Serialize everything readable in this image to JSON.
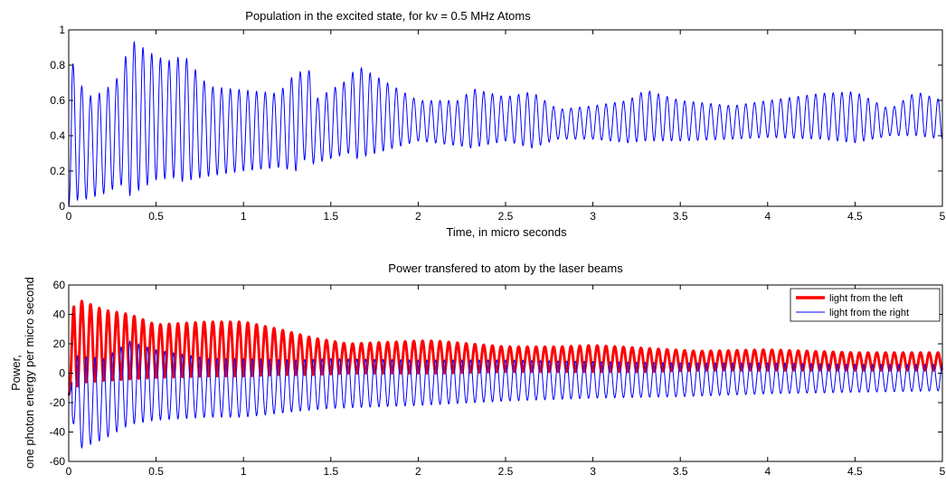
{
  "chart_data": [
    {
      "type": "line",
      "title": "Population in the excited state, for kv = 0.5 MHz Atoms",
      "xlabel": "Time, in micro seconds",
      "ylabel": "",
      "xlim": [
        0,
        5
      ],
      "ylim": [
        0,
        1
      ],
      "xticks": [
        "0",
        "0.5",
        "1",
        "1.5",
        "2",
        "2.5",
        "3",
        "3.5",
        "4",
        "4.5",
        "5"
      ],
      "yticks": [
        "0",
        "0.2",
        "0.4",
        "0.6",
        "0.8",
        "1"
      ],
      "grid": false,
      "legend": null,
      "series": [
        {
          "color": "#0000ff",
          "style": "oscillating",
          "oscillation_period_us": 0.05,
          "envelope": {
            "t": [
              0,
              0.02,
              0.1,
              0.2,
              0.3,
              0.35,
              0.5,
              0.6,
              0.65,
              0.8,
              1.0,
              1.2,
              1.3,
              1.38,
              1.4,
              1.6,
              1.65,
              2.0,
              2.25,
              2.3,
              2.5,
              2.65,
              2.8,
              3.0,
              3.2,
              3.3,
              3.5,
              3.8,
              4.0,
              4.3,
              4.5,
              4.7,
              4.85,
              5.0
            ],
            "max": [
              0.0,
              0.82,
              0.62,
              0.65,
              0.75,
              0.95,
              0.85,
              0.82,
              0.87,
              0.68,
              0.66,
              0.64,
              0.76,
              0.77,
              0.6,
              0.72,
              0.8,
              0.6,
              0.6,
              0.67,
              0.62,
              0.65,
              0.55,
              0.57,
              0.6,
              0.66,
              0.6,
              0.57,
              0.6,
              0.64,
              0.65,
              0.55,
              0.65,
              0.6
            ],
            "min": [
              0.0,
              0.03,
              0.04,
              0.07,
              0.12,
              0.06,
              0.15,
              0.16,
              0.14,
              0.17,
              0.2,
              0.22,
              0.2,
              0.3,
              0.24,
              0.3,
              0.27,
              0.37,
              0.34,
              0.33,
              0.37,
              0.33,
              0.38,
              0.38,
              0.36,
              0.37,
              0.37,
              0.38,
              0.39,
              0.38,
              0.36,
              0.4,
              0.4,
              0.38
            ]
          }
        }
      ]
    },
    {
      "type": "line",
      "title": "Power transfered to atom by the laser beams",
      "xlabel": "",
      "ylabel": "Power,\none photon energy per micro second",
      "ylabel_lines": [
        "Power,",
        "one photon energy per micro second"
      ],
      "xlim": [
        0,
        5
      ],
      "ylim": [
        -60,
        60
      ],
      "xticks": [
        "0",
        "0.5",
        "1",
        "1.5",
        "2",
        "2.5",
        "3",
        "3.5",
        "4",
        "4.5",
        "5"
      ],
      "yticks": [
        "-60",
        "-40",
        "-20",
        "0",
        "20",
        "40",
        "60"
      ],
      "grid": false,
      "legend": "top-right",
      "series": [
        {
          "name": "light from the left",
          "color": "#ff0000",
          "line_weight": "thick",
          "oscillation_period_us": 0.05,
          "envelope": {
            "t": [
              0,
              0.03,
              0.1,
              0.2,
              0.35,
              0.5,
              0.8,
              1.0,
              1.2,
              1.4,
              1.6,
              2.0,
              2.1,
              2.5,
              2.8,
              3.0,
              3.3,
              3.6,
              4.0,
              4.5,
              5.0
            ],
            "max": [
              -15,
              51,
              48,
              43,
              40,
              33,
              35,
              35,
              30,
              24,
              20,
              22,
              22,
              18,
              18,
              19,
              17,
              15,
              16,
              14,
              14
            ],
            "min": [
              -15,
              -10,
              -6,
              -5,
              -4,
              -3,
              -2,
              -2,
              -1,
              -1,
              0,
              0,
              0,
              1,
              1,
              1,
              1,
              2,
              2,
              2,
              2
            ]
          }
        },
        {
          "name": "light from the right",
          "color": "#0000ff",
          "line_weight": "thin",
          "oscillation_period_us": 0.05,
          "envelope": {
            "t": [
              0,
              0.05,
              0.2,
              0.35,
              0.5,
              0.8,
              1.0,
              1.3,
              1.5,
              2.0,
              2.5,
              3.0,
              3.5,
              4.0,
              4.5,
              5.0
            ],
            "max": [
              -15,
              12,
              10,
              22,
              16,
              10,
              10,
              9,
              10,
              9,
              9,
              8,
              7,
              7,
              6,
              6
            ],
            "min": [
              -15,
              -52,
              -45,
              -35,
              -32,
              -30,
              -30,
              -26,
              -24,
              -22,
              -19,
              -17,
              -16,
              -14,
              -13,
              -12
            ]
          }
        }
      ]
    }
  ]
}
